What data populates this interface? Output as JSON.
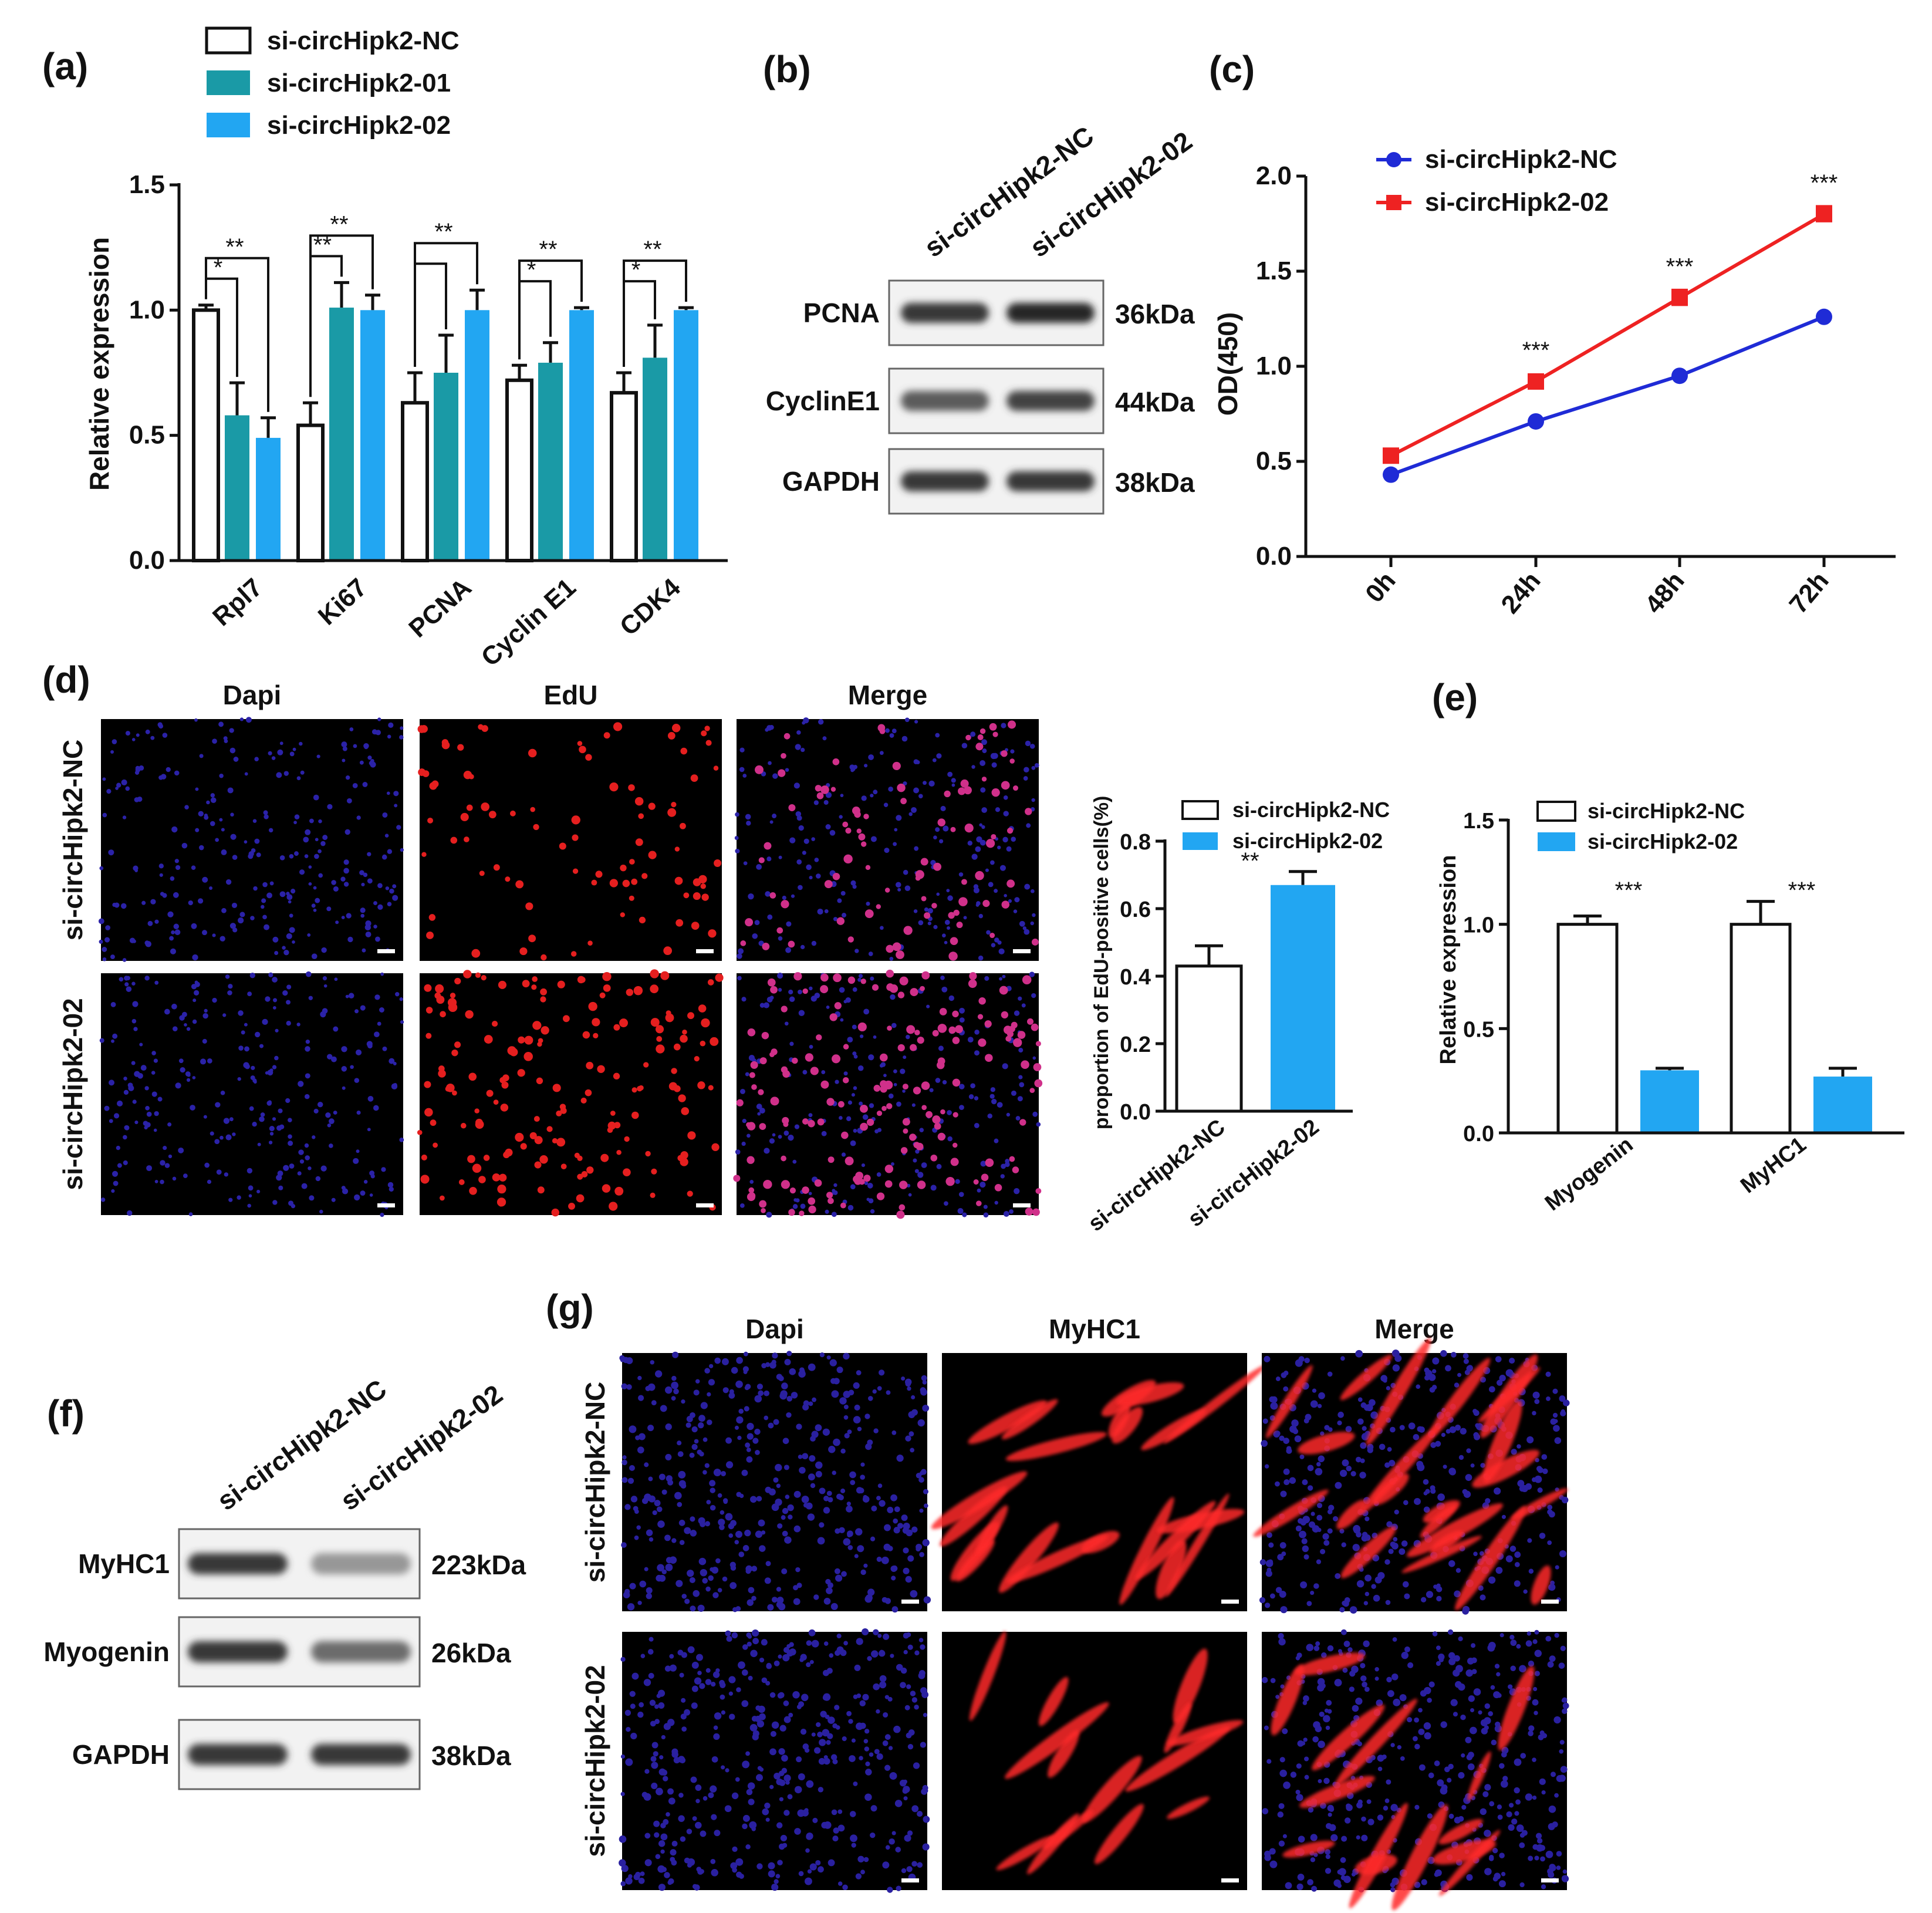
{
  "panel_labels": {
    "a": "(a)",
    "b": "(b)",
    "c": "(c)",
    "d": "(d)",
    "e": "(e)",
    "f": "(f)",
    "g": "(g)"
  },
  "colors": {
    "nc": "#ffffff",
    "si01": "#1a9aa6",
    "si02": "#22a6f2",
    "line_nc": "#1f2bd6",
    "line_si02": "#ee2222"
  },
  "chart_data": [
    {
      "id": "a",
      "type": "bar",
      "ylabel": "Relative expression",
      "ylim": [
        0,
        1.5
      ],
      "yticks": [
        "0.0",
        "0.5",
        "1.0",
        "1.5"
      ],
      "categories": [
        "Rpl7",
        "Ki67",
        "PCNA",
        "Cyclin E1",
        "CDK4"
      ],
      "series": [
        {
          "name": "si-circHipk2-NC",
          "values": [
            1.0,
            0.54,
            0.63,
            0.72,
            0.67
          ],
          "errors": [
            0.02,
            0.09,
            0.12,
            0.06,
            0.08
          ]
        },
        {
          "name": "si-circHipk2-01",
          "values": [
            0.58,
            1.01,
            0.75,
            0.79,
            0.81
          ],
          "errors": [
            0.13,
            0.1,
            0.15,
            0.08,
            0.13
          ]
        },
        {
          "name": "si-circHipk2-02",
          "values": [
            0.49,
            1.0,
            1.0,
            1.0,
            1.0
          ],
          "errors": [
            0.08,
            0.06,
            0.08,
            0.01,
            0.01
          ]
        }
      ],
      "significance": [
        {
          "cat": 0,
          "inner": "*",
          "outer": "**"
        },
        {
          "cat": 1,
          "inner": "**",
          "outer": "**"
        },
        {
          "cat": 2,
          "inner": "",
          "outer": "**"
        },
        {
          "cat": 3,
          "inner": "*",
          "outer": "**"
        },
        {
          "cat": 4,
          "inner": "*",
          "outer": "**"
        }
      ]
    },
    {
      "id": "c",
      "type": "line",
      "ylabel": "OD(450)",
      "ylim": [
        0,
        2.0
      ],
      "yticks": [
        "0.0",
        "0.5",
        "1.0",
        "1.5",
        "2.0"
      ],
      "x": [
        "0h",
        "24h",
        "48h",
        "72h"
      ],
      "series": [
        {
          "name": "si-circHipk2-NC",
          "values": [
            0.43,
            0.71,
            0.95,
            1.26
          ]
        },
        {
          "name": "si-circHipk2-02",
          "values": [
            0.53,
            0.92,
            1.36,
            1.8
          ],
          "errors": [
            0.02,
            0.03,
            0.04,
            0.04
          ]
        }
      ],
      "significance": [
        "",
        "***",
        "***",
        "***"
      ]
    },
    {
      "id": "d",
      "type": "bar",
      "ylabel": "proportion of EdU-positive cells(%)",
      "ylim": [
        0,
        0.8
      ],
      "yticks": [
        "0.0",
        "0.2",
        "0.4",
        "0.6",
        "0.8"
      ],
      "categories": [
        "si-circHipk2-NC",
        "si-circHipk2-02"
      ],
      "values": [
        0.43,
        0.67
      ],
      "errors": [
        0.06,
        0.04
      ],
      "legend": [
        "si-circHipk2-NC",
        "si-circHipk2-02"
      ],
      "significance": "**"
    },
    {
      "id": "e",
      "type": "bar",
      "ylabel": "Relative expression",
      "ylim": [
        0,
        1.5
      ],
      "yticks": [
        "0.0",
        "0.5",
        "1.0",
        "1.5"
      ],
      "categories": [
        "Myogenin",
        "MyHC1"
      ],
      "series": [
        {
          "name": "si-circHipk2-NC",
          "values": [
            1.0,
            1.0
          ],
          "errors": [
            0.04,
            0.11
          ]
        },
        {
          "name": "si-circHipk2-02",
          "values": [
            0.3,
            0.27
          ],
          "errors": [
            0.01,
            0.04
          ]
        }
      ],
      "significance": [
        "***",
        "***"
      ]
    }
  ],
  "blot_b": {
    "lanes": [
      "si-circHipk2-NC",
      "si-circHipk2-02"
    ],
    "rows": [
      {
        "name": "PCNA",
        "size": "36kDa",
        "intensity": [
          0.9,
          1.0
        ]
      },
      {
        "name": "CyclinE1",
        "size": "44kDa",
        "intensity": [
          0.7,
          0.85
        ]
      },
      {
        "name": "GAPDH",
        "size": "38kDa",
        "intensity": [
          0.9,
          0.9
        ]
      }
    ]
  },
  "blot_f": {
    "lanes": [
      "si-circHipk2-NC",
      "si-circHipk2-02"
    ],
    "rows": [
      {
        "name": "MyHC1",
        "size": "223kDa",
        "intensity": [
          0.9,
          0.35
        ]
      },
      {
        "name": "Myogenin",
        "size": "26kDa",
        "intensity": [
          0.9,
          0.6
        ]
      },
      {
        "name": "GAPDH",
        "size": "38kDa",
        "intensity": [
          0.9,
          0.9
        ]
      }
    ]
  },
  "micro_d": {
    "columns": [
      "Dapi",
      "EdU",
      "Merge"
    ],
    "rows": [
      "si-circHipk2-NC",
      "si-circHipk2-02"
    ]
  },
  "micro_g": {
    "columns": [
      "Dapi",
      "MyHC1",
      "Merge"
    ],
    "rows": [
      "si-circHipk2-NC",
      "si-circHipk2-02"
    ]
  }
}
